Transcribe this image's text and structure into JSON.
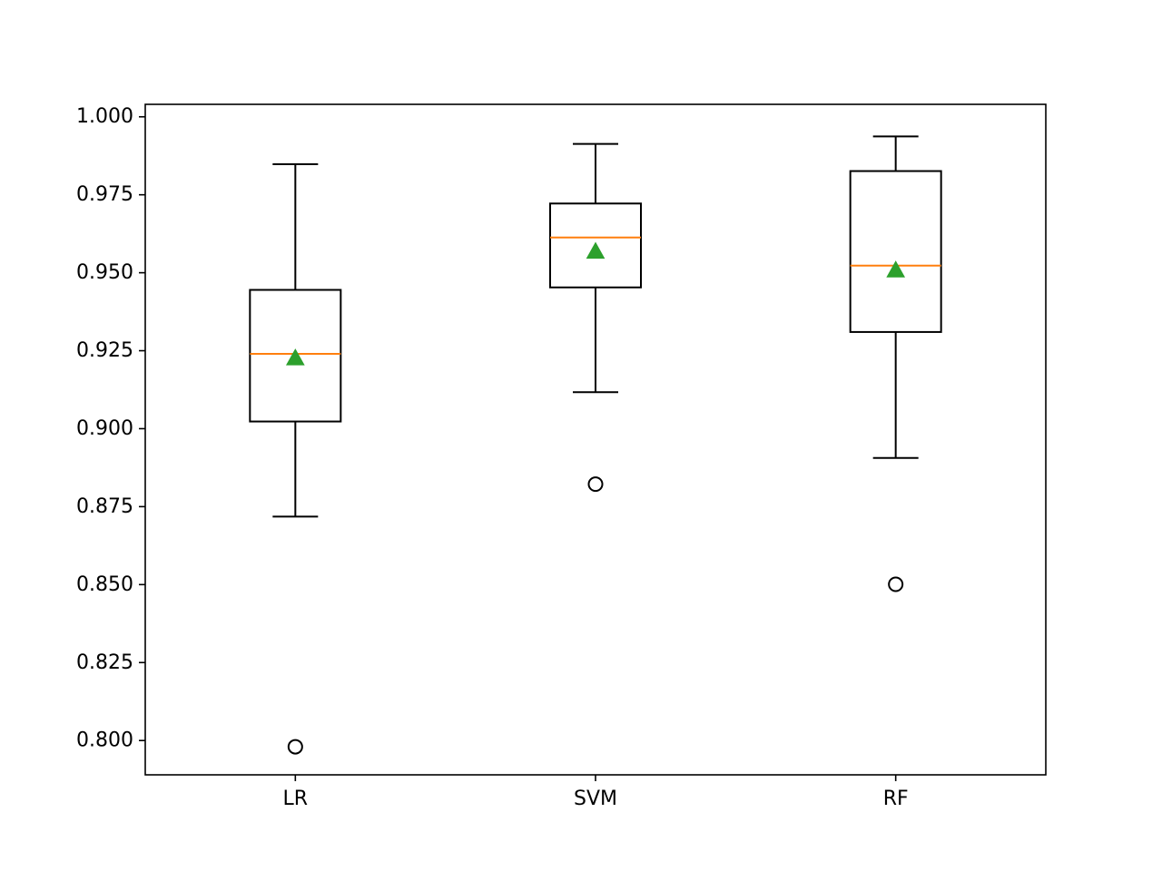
{
  "chart_data": {
    "type": "box",
    "title": "",
    "xlabel": "",
    "ylabel": "",
    "ylim": [
      0.789,
      1.004
    ],
    "yticks": [
      0.8,
      0.825,
      0.85,
      0.875,
      0.9,
      0.925,
      0.95,
      0.975,
      1.0
    ],
    "ytick_labels": [
      "0.800",
      "0.825",
      "0.850",
      "0.875",
      "0.900",
      "0.925",
      "0.950",
      "0.975",
      "1.000"
    ],
    "categories": [
      "LR",
      "SVM",
      "RF"
    ],
    "grid": false,
    "show_means": true,
    "colors": {
      "box": "#000000",
      "median": "#ff7f0e",
      "mean": "#2ca02c",
      "outlier": "#000000"
    },
    "boxes": [
      {
        "label": "LR",
        "whisker_low": 0.8718,
        "q1": 0.9023,
        "median": 0.924,
        "q3": 0.9445,
        "whisker_high": 0.9848,
        "mean": 0.9225,
        "outliers": [
          0.798
        ]
      },
      {
        "label": "SVM",
        "whisker_low": 0.9117,
        "q1": 0.9453,
        "median": 0.9613,
        "q3": 0.9722,
        "whisker_high": 0.9913,
        "mean": 0.9567,
        "outliers": [
          0.8822
        ]
      },
      {
        "label": "RF",
        "whisker_low": 0.8906,
        "q1": 0.931,
        "median": 0.9523,
        "q3": 0.9826,
        "whisker_high": 0.9937,
        "mean": 0.9507,
        "outliers": [
          0.8501
        ]
      }
    ]
  }
}
